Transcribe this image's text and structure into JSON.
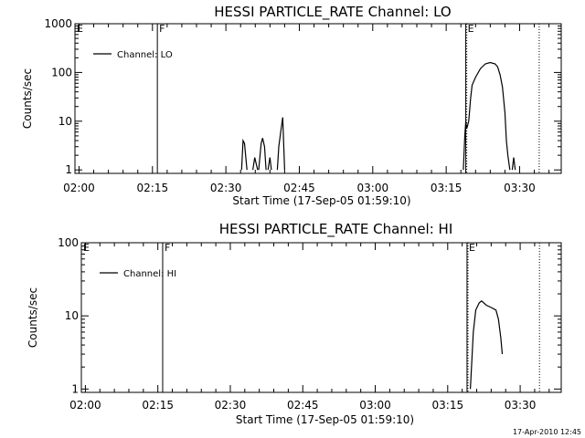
{
  "footer": "17-Apr-2010 12:45",
  "chart_data": [
    {
      "type": "line",
      "title": "HESSI PARTICLE_RATE Channel: LO",
      "xlabel": "Start Time (17-Sep-05 01:59:10)",
      "ylabel": "Counts/sec",
      "yscale": "log",
      "x_ticks": [
        "02:00",
        "02:15",
        "02:30",
        "02:45",
        "03:00",
        "03:15",
        "03:30"
      ],
      "y_ticks": [
        "1",
        "10",
        "100",
        "1000"
      ],
      "legend": "Channel: LO",
      "markers": [
        {
          "label": "E",
          "x": "02:00",
          "style": "none"
        },
        {
          "label": "F",
          "x": "02:16",
          "style": "solid"
        },
        {
          "label": "E",
          "x": "03:19",
          "style": "solid"
        },
        {
          "label": "",
          "x": "03:19.2",
          "style": "dotted"
        },
        {
          "label": "",
          "x": "03:34",
          "style": "dotted"
        }
      ],
      "series": [
        {
          "name": "Channel: LO",
          "segments": [
            [
              [
                "02:33.2",
                1.0
              ],
              [
                "02:33.5",
                4.0
              ],
              [
                "02:33.8",
                3.5
              ],
              [
                "02:34.3",
                1.0
              ]
            ],
            [
              [
                "02:35.5",
                1.0
              ],
              [
                "02:35.9",
                1.8
              ],
              [
                "02:36.5",
                1.0
              ]
            ],
            [
              [
                "02:36.7",
                1.0
              ],
              [
                "02:37.2",
                3.5
              ],
              [
                "02:37.5",
                4.5
              ],
              [
                "02:37.9",
                3.0
              ],
              [
                "02:38.2",
                1.0
              ]
            ],
            [
              [
                "02:38.6",
                1.0
              ],
              [
                "02:39.0",
                1.8
              ],
              [
                "02:39.3",
                1.0
              ]
            ],
            [
              [
                "02:40.5",
                1.0
              ],
              [
                "02:40.8",
                3.0
              ],
              [
                "02:41.2",
                6.0
              ],
              [
                "02:41.6",
                12.0
              ],
              [
                "02:42.0",
                1.0
              ]
            ],
            [
              [
                "03:18.5",
                1.0
              ],
              [
                "03:18.8",
                5.0
              ],
              [
                "03:19.0",
                10.0
              ],
              [
                "03:19.2",
                7.0
              ],
              [
                "03:19.6",
                10.0
              ],
              [
                "03:20.0",
                30.0
              ],
              [
                "03:20.3",
                55.0
              ],
              [
                "03:21.0",
                80.0
              ],
              [
                "03:22.0",
                120.0
              ],
              [
                "03:23.0",
                150.0
              ],
              [
                "03:24.0",
                160.0
              ],
              [
                "03:25.0",
                150.0
              ],
              [
                "03:25.5",
                130.0
              ],
              [
                "03:26.0",
                90.0
              ],
              [
                "03:26.5",
                50.0
              ],
              [
                "03:27.0",
                15.0
              ],
              [
                "03:27.3",
                4.0
              ],
              [
                "03:27.6",
                2.0
              ],
              [
                "03:28.0",
                1.0
              ]
            ],
            [
              [
                "03:28.5",
                1.0
              ],
              [
                "03:28.8",
                1.8
              ],
              [
                "03:29.1",
                1.0
              ]
            ]
          ]
        }
      ]
    },
    {
      "type": "line",
      "title": "HESSI PARTICLE_RATE Channel: HI",
      "xlabel": "Start Time (17-Sep-05 01:59:10)",
      "ylabel": "Counts/sec",
      "yscale": "log",
      "x_ticks": [
        "02:00",
        "02:15",
        "02:30",
        "02:45",
        "03:00",
        "03:15",
        "03:30"
      ],
      "y_ticks": [
        "1",
        "10",
        "100"
      ],
      "legend": "Channel: HI",
      "markers": [
        {
          "label": "E",
          "x": "02:00",
          "style": "none"
        },
        {
          "label": "F",
          "x": "02:16",
          "style": "solid"
        },
        {
          "label": "E",
          "x": "03:19",
          "style": "solid"
        },
        {
          "label": "",
          "x": "03:19.2",
          "style": "dotted"
        },
        {
          "label": "",
          "x": "03:34",
          "style": "dotted"
        }
      ],
      "series": [
        {
          "name": "Channel: HI",
          "segments": [
            [
              [
                "03:19.7",
                1.0
              ],
              [
                "03:20.3",
                6.0
              ],
              [
                "03:20.8",
                12.0
              ],
              [
                "03:21.5",
                15.0
              ],
              [
                "03:22.0",
                16.0
              ],
              [
                "03:23.0",
                14.0
              ],
              [
                "03:24.0",
                13.0
              ],
              [
                "03:25.0",
                12.0
              ],
              [
                "03:25.5",
                9.0
              ],
              [
                "03:26.0",
                5.0
              ],
              [
                "03:26.3",
                3.0
              ]
            ]
          ]
        }
      ]
    }
  ]
}
